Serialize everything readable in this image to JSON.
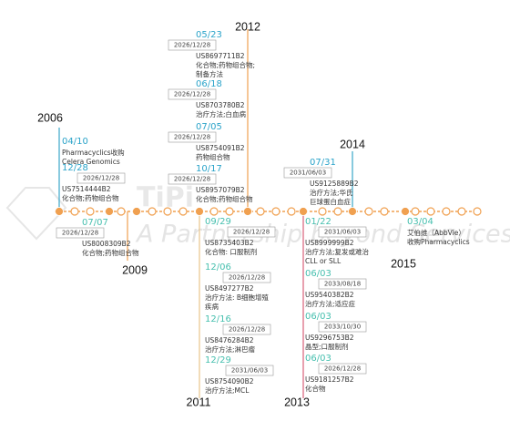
{
  "years": [
    "2006",
    "2009",
    "2011",
    "2012",
    "2013",
    "2014",
    "2015"
  ],
  "watermark": {
    "logo": "TiPi",
    "tagline": "A Partnership beyond Services"
  },
  "events": [
    {
      "date": "04/10",
      "lines": [
        "Pharmacyclics收购",
        "Celera Genomics"
      ]
    },
    {
      "date": "12/28",
      "expiry": "2026/12/28",
      "number": "US7514444B2",
      "lines": [
        "化合物;药物组合物"
      ]
    },
    {
      "date": "07/07",
      "expiry": "2026/12/28",
      "number": "US8008309B2",
      "lines": [
        "化合物;药物组合物"
      ]
    },
    {
      "date": "05/23",
      "expiry": "2026/12/28",
      "number": "US8697711B2",
      "lines": [
        "化合物;药物组合物;",
        "制备方法"
      ]
    },
    {
      "date": "06/18",
      "expiry": "2026/12/28",
      "number": "US8703780B2",
      "lines": [
        "治疗方法;白血病"
      ]
    },
    {
      "date": "07/05",
      "expiry": "2026/12/28",
      "number": "US8754091B2",
      "lines": [
        "药物组合物"
      ]
    },
    {
      "date": "10/17",
      "expiry": "2026/12/28",
      "number": "US8957079B2",
      "lines": [
        "化合物;药物组合物"
      ]
    },
    {
      "date": "09/29",
      "expiry": "2026/12/28",
      "number": "US8735403B2",
      "lines": [
        "化合物: 口服制剂"
      ]
    },
    {
      "date": "12/06",
      "expiry": "2026/12/28",
      "number": "US8497277B2",
      "lines": [
        "治疗方法: B细胞增殖",
        "疾病"
      ]
    },
    {
      "date": "12/16",
      "expiry": "2026/12/28",
      "number": "US8476284B2",
      "lines": [
        "治疗方法;淋巴瘤"
      ]
    },
    {
      "date": "12/29",
      "expiry": "2031/06/03",
      "number": "US8754090B2",
      "lines": [
        "治疗方法;MCL"
      ]
    },
    {
      "date": "07/31",
      "expiry": "2031/06/03",
      "number": "US9125889B2",
      "lines": [
        "治疗方法;华氏",
        "巨球蛋白血症"
      ]
    },
    {
      "date": "01/22",
      "expiry": "2031/06/03",
      "number": "US8999999B2",
      "lines": [
        "治疗方法;复发或难治",
        "CLL or SLL"
      ]
    },
    {
      "date": "06/03",
      "expiry": "2033/08/18",
      "number": "US9540382B2",
      "lines": [
        "治疗方法;适应症"
      ]
    },
    {
      "date": "06/03",
      "expiry": "2033/10/30",
      "number": "US9296753B2",
      "lines": [
        "晶型;口服制剂"
      ]
    },
    {
      "date": "06/03",
      "expiry": "2026/12/28",
      "number": "US9181257B2",
      "lines": [
        "化合物"
      ]
    },
    {
      "date": "03/04",
      "lines": [
        "艾伯维（AbbVie）",
        "收购Pharmacyclics"
      ]
    }
  ]
}
